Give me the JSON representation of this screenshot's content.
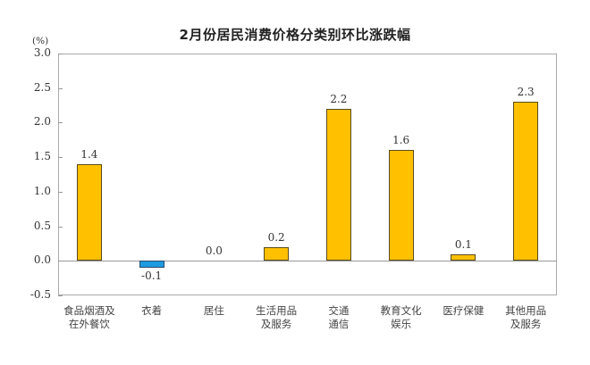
{
  "chart_data": {
    "type": "bar",
    "title": "2月份居民消费价格分类别环比涨跌幅",
    "xlabel": "",
    "ylabel": "(%)",
    "ylim": [
      -0.5,
      3.0
    ],
    "yticks": [
      "3.0",
      "2.5",
      "2.0",
      "1.5",
      "1.0",
      "0.5",
      "0.0",
      "-0.5"
    ],
    "ytick_values": [
      3.0,
      2.5,
      2.0,
      1.5,
      1.0,
      0.5,
      0.0,
      -0.5
    ],
    "grid": false,
    "legend": null,
    "categories": [
      [
        "食品烟酒及",
        "在外餐饮"
      ],
      [
        "衣着"
      ],
      [
        "居住"
      ],
      [
        "生活用品",
        "及服务"
      ],
      [
        "交通",
        "通信"
      ],
      [
        "教育文化",
        "娱乐"
      ],
      [
        "医疗保健"
      ],
      [
        "其他用品",
        "及服务"
      ]
    ],
    "values": [
      1.4,
      -0.1,
      0.0,
      0.2,
      2.2,
      1.6,
      0.1,
      2.3
    ],
    "value_labels": [
      "1.4",
      "-0.1",
      "0.0",
      "0.2",
      "2.2",
      "1.6",
      "0.1",
      "2.3"
    ],
    "colors": {
      "positive": "#ffc000",
      "negative": "#1e9be0"
    }
  }
}
